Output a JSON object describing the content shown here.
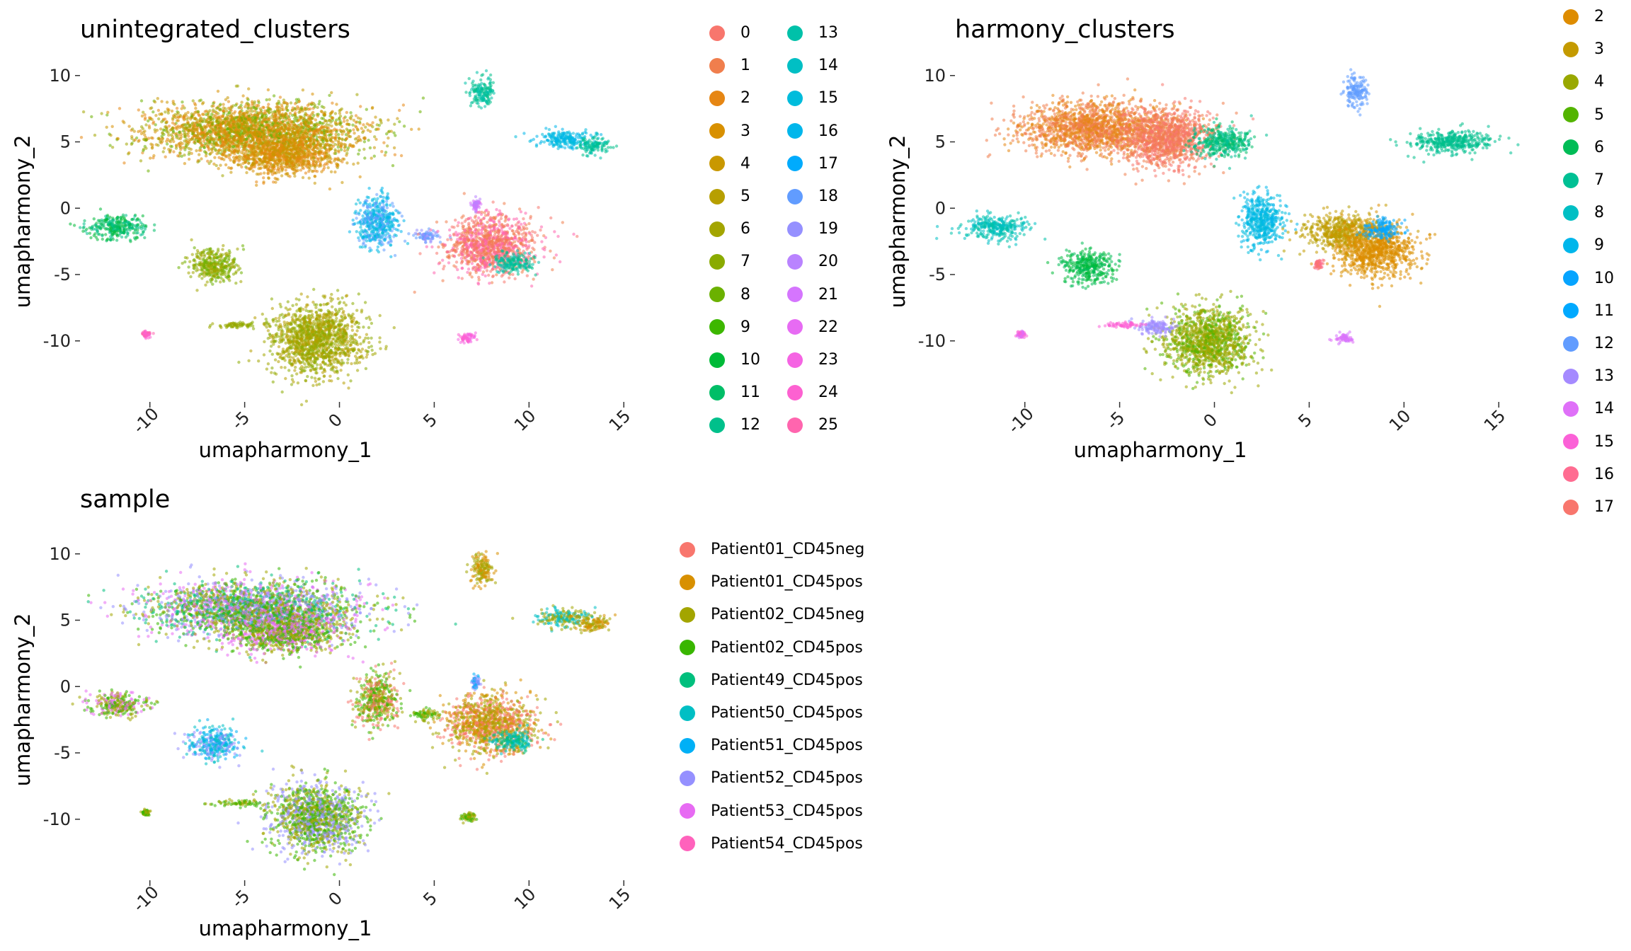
{
  "chart_data": [
    {
      "id": "unintegrated",
      "type": "scatter",
      "title": "unintegrated_clusters",
      "xlabel": "umapharmony_1",
      "ylabel": "umapharmony_2",
      "xlim": [
        -13.5,
        16
      ],
      "ylim": [
        -13,
        11
      ],
      "x_ticks": [
        "-10",
        "-5",
        "0",
        "5",
        "10",
        "15"
      ],
      "y_ticks": [
        "10",
        "5",
        "0",
        "-5",
        "-10"
      ],
      "legend_title": "",
      "legend": [
        "0",
        "1",
        "2",
        "3",
        "4",
        "5",
        "6",
        "7",
        "8",
        "9",
        "10",
        "11",
        "12",
        "13",
        "14",
        "15",
        "16",
        "17",
        "18",
        "19",
        "20",
        "21",
        "22",
        "23",
        "24",
        "25"
      ],
      "legend_colors": [
        "#F8766D",
        "#F07E4D",
        "#E68613",
        "#D89000",
        "#C99800",
        "#B79F00",
        "#A3A500",
        "#8AAB00",
        "#6BB100",
        "#3DB700",
        "#00BA38",
        "#00BE67",
        "#00C08B",
        "#00C1A9",
        "#00BFC4",
        "#00BCDC",
        "#00B6EB",
        "#00ABFD",
        "#619CFF",
        "#9590FF",
        "#B983FF",
        "#D575FE",
        "#E76BF3",
        "#F564E3",
        "#FD61D1",
        "#FF65AE"
      ],
      "clusters": [
        {
          "x": -4.5,
          "y": 5.8,
          "rx": 5.2,
          "ry": 1.9,
          "colors": [
            "#C99800",
            "#A3A500",
            "#D89000",
            "#E68613",
            "#6BB100"
          ]
        },
        {
          "x": -3.0,
          "y": 4.0,
          "rx": 2.6,
          "ry": 1.4,
          "colors": [
            "#E68613",
            "#D89000",
            "#C99800"
          ]
        },
        {
          "x": -11.7,
          "y": -1.4,
          "rx": 1.4,
          "ry": 0.8,
          "colors": [
            "#00BE67",
            "#00C08B",
            "#00BA38"
          ]
        },
        {
          "x": -6.6,
          "y": -4.3,
          "rx": 1.2,
          "ry": 1.1,
          "colors": [
            "#8AAB00",
            "#6BB100",
            "#A3A500"
          ]
        },
        {
          "x": -1.2,
          "y": -9.9,
          "rx": 2.2,
          "ry": 2.4,
          "colors": [
            "#A3A500",
            "#B79F00",
            "#8AAB00"
          ]
        },
        {
          "x": -5.2,
          "y": -8.8,
          "rx": 1.3,
          "ry": 0.2,
          "colors": [
            "#A3A500",
            "#8AAB00"
          ]
        },
        {
          "x": 7.5,
          "y": 8.8,
          "rx": 0.6,
          "ry": 1.0,
          "colors": [
            "#00C08B",
            "#00C1A9"
          ]
        },
        {
          "x": 11.8,
          "y": 5.2,
          "rx": 1.3,
          "ry": 0.6,
          "colors": [
            "#00BCDC",
            "#00B6EB"
          ]
        },
        {
          "x": 13.4,
          "y": 4.7,
          "rx": 0.8,
          "ry": 0.6,
          "colors": [
            "#00C1A9",
            "#00C08B"
          ]
        },
        {
          "x": 2.0,
          "y": -1.0,
          "rx": 1.0,
          "ry": 1.8,
          "colors": [
            "#00BCDC",
            "#00B6EB",
            "#619CFF"
          ]
        },
        {
          "x": 4.6,
          "y": -2.1,
          "rx": 0.7,
          "ry": 0.4,
          "colors": [
            "#9590FF",
            "#619CFF"
          ]
        },
        {
          "x": 8.0,
          "y": -2.8,
          "rx": 2.2,
          "ry": 2.0,
          "colors": [
            "#F8766D",
            "#F07E4D",
            "#FF65AE"
          ]
        },
        {
          "x": 9.2,
          "y": -4.1,
          "rx": 0.9,
          "ry": 0.7,
          "colors": [
            "#00C1A9",
            "#00C08B"
          ]
        },
        {
          "x": 7.2,
          "y": 0.3,
          "rx": 0.2,
          "ry": 0.4,
          "colors": [
            "#D575FE",
            "#B983FF"
          ]
        },
        {
          "x": -10.2,
          "y": -9.5,
          "rx": 0.2,
          "ry": 0.2,
          "colors": [
            "#FD61D1",
            "#FF65AE"
          ]
        },
        {
          "x": 6.8,
          "y": -9.8,
          "rx": 0.4,
          "ry": 0.3,
          "colors": [
            "#FD61D1",
            "#F564E3"
          ]
        }
      ]
    },
    {
      "id": "harmony",
      "type": "scatter",
      "title": "harmony_clusters",
      "xlabel": "umapharmony_1",
      "ylabel": "umapharmony_2",
      "xlim": [
        -13.5,
        16
      ],
      "ylim": [
        -13,
        11
      ],
      "x_ticks": [
        "-10",
        "-5",
        "0",
        "5",
        "10",
        "15"
      ],
      "y_ticks": [
        "10",
        "5",
        "0",
        "-5",
        "-10"
      ],
      "legend_title": "",
      "legend": [
        "2",
        "3",
        "4",
        "5",
        "6",
        "7",
        "8",
        "9",
        "10",
        "11",
        "12",
        "13",
        "14",
        "15",
        "16",
        "17"
      ],
      "legend_colors": [
        "#DE8C00",
        "#C49A00",
        "#99A800",
        "#53B400",
        "#00BC56",
        "#00C094",
        "#00BFC4",
        "#00B6EB",
        "#06A4FF",
        "#00A9FF",
        "#619CFF",
        "#A58AFF",
        "#DF70F8",
        "#FB61D7",
        "#FF6C91",
        "#F8766D"
      ],
      "clusters": [
        {
          "x": -6.2,
          "y": 6.0,
          "rx": 3.6,
          "ry": 1.8,
          "colors": [
            "#E68613",
            "#F07E4D"
          ]
        },
        {
          "x": -2.5,
          "y": 5.2,
          "rx": 2.2,
          "ry": 2.0,
          "colors": [
            "#F8766D",
            "#F07E4D"
          ]
        },
        {
          "x": 0.5,
          "y": 5.0,
          "rx": 1.4,
          "ry": 1.0,
          "colors": [
            "#00C094",
            "#00BE67"
          ]
        },
        {
          "x": -11.5,
          "y": -1.4,
          "rx": 1.5,
          "ry": 0.8,
          "colors": [
            "#00BFC4",
            "#00C1A9"
          ]
        },
        {
          "x": -6.6,
          "y": -4.4,
          "rx": 1.2,
          "ry": 1.1,
          "colors": [
            "#00BC56",
            "#00BA38"
          ]
        },
        {
          "x": -0.4,
          "y": -10.0,
          "rx": 2.1,
          "ry": 2.3,
          "colors": [
            "#99A800",
            "#A3A500",
            "#53B400"
          ]
        },
        {
          "x": -3.0,
          "y": -9.0,
          "rx": 1.0,
          "ry": 0.5,
          "colors": [
            "#A58AFF",
            "#9590FF"
          ]
        },
        {
          "x": -4.8,
          "y": -8.8,
          "rx": 0.8,
          "ry": 0.2,
          "colors": [
            "#FB61D7",
            "#FD61D1"
          ]
        },
        {
          "x": 7.5,
          "y": 8.8,
          "rx": 0.6,
          "ry": 1.0,
          "colors": [
            "#619CFF",
            "#619CFF"
          ]
        },
        {
          "x": 12.5,
          "y": 5.0,
          "rx": 1.9,
          "ry": 0.8,
          "colors": [
            "#00C094",
            "#00C08B"
          ]
        },
        {
          "x": 2.5,
          "y": -1.0,
          "rx": 1.0,
          "ry": 1.8,
          "colors": [
            "#00B6EB",
            "#00BCDC"
          ]
        },
        {
          "x": 6.8,
          "y": -1.8,
          "rx": 1.8,
          "ry": 1.2,
          "colors": [
            "#C49A00",
            "#B79F00"
          ]
        },
        {
          "x": 8.6,
          "y": -3.2,
          "rx": 1.8,
          "ry": 1.8,
          "colors": [
            "#DE8C00",
            "#D89000"
          ]
        },
        {
          "x": 8.8,
          "y": -1.6,
          "rx": 0.8,
          "ry": 0.7,
          "colors": [
            "#00A9FF",
            "#06A4FF"
          ]
        },
        {
          "x": 5.5,
          "y": -4.2,
          "rx": 0.2,
          "ry": 0.3,
          "colors": [
            "#FF6C91",
            "#F8766D"
          ]
        },
        {
          "x": -10.2,
          "y": -9.5,
          "rx": 0.2,
          "ry": 0.2,
          "colors": [
            "#DF70F8",
            "#FB61D7"
          ]
        },
        {
          "x": 6.8,
          "y": -9.8,
          "rx": 0.4,
          "ry": 0.3,
          "colors": [
            "#DF70F8",
            "#D575FE"
          ]
        }
      ]
    },
    {
      "id": "sample",
      "type": "scatter",
      "title": "sample",
      "xlabel": "umapharmony_1",
      "ylabel": "umapharmony_2",
      "xlim": [
        -13.5,
        16
      ],
      "ylim": [
        -13,
        11
      ],
      "x_ticks": [
        "-10",
        "-5",
        "0",
        "5",
        "10",
        "15"
      ],
      "y_ticks": [
        "10",
        "5",
        "0",
        "-5",
        "-10"
      ],
      "legend_title": "",
      "legend": [
        "Patient01_CD45neg",
        "Patient01_CD45pos",
        "Patient02_CD45neg",
        "Patient02_CD45pos",
        "Patient49_CD45pos",
        "Patient50_CD45pos",
        "Patient51_CD45pos",
        "Patient52_CD45pos",
        "Patient53_CD45pos",
        "Patient54_CD45pos"
      ],
      "legend_colors": [
        "#F8766D",
        "#D89000",
        "#A3A500",
        "#39B600",
        "#00BF7D",
        "#00BFC4",
        "#00B0F6",
        "#9590FF",
        "#E76BF3",
        "#FF62BC"
      ],
      "clusters": [
        {
          "x": -4.5,
          "y": 5.8,
          "rx": 5.2,
          "ry": 1.9,
          "colors": [
            "#39B600",
            "#A3A500",
            "#E76BF3",
            "#9590FF",
            "#00BF7D"
          ]
        },
        {
          "x": -3.0,
          "y": 4.0,
          "rx": 2.6,
          "ry": 1.4,
          "colors": [
            "#39B600",
            "#E76BF3",
            "#A3A500"
          ]
        },
        {
          "x": -11.7,
          "y": -1.4,
          "rx": 1.4,
          "ry": 0.8,
          "colors": [
            "#39B600",
            "#A3A500",
            "#E76BF3"
          ]
        },
        {
          "x": -6.6,
          "y": -4.3,
          "rx": 1.2,
          "ry": 1.1,
          "colors": [
            "#00BFC4",
            "#00B0F6",
            "#9590FF"
          ]
        },
        {
          "x": -1.2,
          "y": -9.9,
          "rx": 2.2,
          "ry": 2.4,
          "colors": [
            "#39B600",
            "#A3A500",
            "#9590FF"
          ]
        },
        {
          "x": -5.2,
          "y": -8.8,
          "rx": 1.3,
          "ry": 0.2,
          "colors": [
            "#A3A500",
            "#39B600"
          ]
        },
        {
          "x": 7.5,
          "y": 8.8,
          "rx": 0.6,
          "ry": 1.0,
          "colors": [
            "#A3A500",
            "#D89000"
          ]
        },
        {
          "x": 11.8,
          "y": 5.2,
          "rx": 1.3,
          "ry": 0.6,
          "colors": [
            "#A3A500",
            "#00BFC4"
          ]
        },
        {
          "x": 13.4,
          "y": 4.7,
          "rx": 0.8,
          "ry": 0.6,
          "colors": [
            "#D89000",
            "#A3A500"
          ]
        },
        {
          "x": 2.0,
          "y": -1.0,
          "rx": 1.0,
          "ry": 1.8,
          "colors": [
            "#A3A500",
            "#39B600",
            "#F8766D"
          ]
        },
        {
          "x": 4.6,
          "y": -2.1,
          "rx": 0.7,
          "ry": 0.4,
          "colors": [
            "#A3A500",
            "#39B600"
          ]
        },
        {
          "x": 8.0,
          "y": -2.8,
          "rx": 2.2,
          "ry": 2.0,
          "colors": [
            "#F8766D",
            "#D89000",
            "#A3A500"
          ]
        },
        {
          "x": 9.2,
          "y": -4.1,
          "rx": 0.9,
          "ry": 0.7,
          "colors": [
            "#00BFC4",
            "#00BF7D"
          ]
        },
        {
          "x": 7.2,
          "y": 0.3,
          "rx": 0.2,
          "ry": 0.4,
          "colors": [
            "#9590FF",
            "#00B0F6"
          ]
        },
        {
          "x": -10.2,
          "y": -9.5,
          "rx": 0.2,
          "ry": 0.2,
          "colors": [
            "#A3A500",
            "#39B600"
          ]
        },
        {
          "x": 6.8,
          "y": -9.8,
          "rx": 0.4,
          "ry": 0.3,
          "colors": [
            "#39B600",
            "#A3A500"
          ]
        }
      ]
    }
  ]
}
